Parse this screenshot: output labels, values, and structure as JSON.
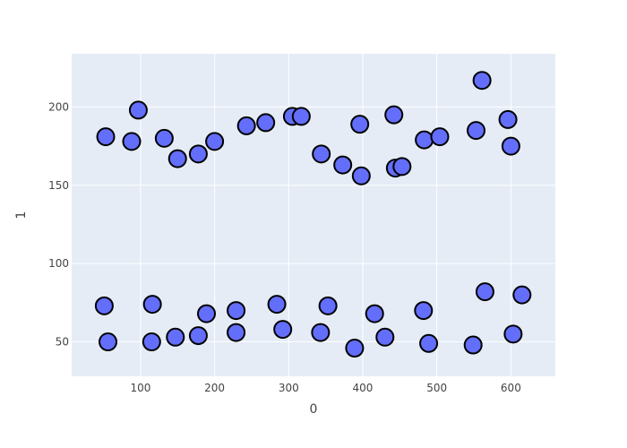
{
  "chart_data": {
    "type": "scatter",
    "xlabel": "0",
    "ylabel": "1",
    "xlim": [
      7,
      660
    ],
    "ylim": [
      28,
      234
    ],
    "xticks": [
      100,
      200,
      300,
      400,
      500,
      600
    ],
    "yticks": [
      50,
      100,
      150,
      200
    ],
    "grid": true,
    "colors": {
      "plot_bg": "#e5ecf6",
      "grid": "#ffffff",
      "marker_fill": "#636efa",
      "marker_edge": "#000000",
      "text": "#444444"
    },
    "series": [
      {
        "points": [
          {
            "x": 53,
            "y": 181
          },
          {
            "x": 88,
            "y": 178
          },
          {
            "x": 97,
            "y": 198
          },
          {
            "x": 132,
            "y": 180
          },
          {
            "x": 150,
            "y": 167
          },
          {
            "x": 178,
            "y": 170
          },
          {
            "x": 200,
            "y": 178
          },
          {
            "x": 243,
            "y": 188
          },
          {
            "x": 269,
            "y": 190
          },
          {
            "x": 305,
            "y": 194
          },
          {
            "x": 317,
            "y": 194
          },
          {
            "x": 344,
            "y": 170
          },
          {
            "x": 373,
            "y": 163
          },
          {
            "x": 396,
            "y": 189
          },
          {
            "x": 398,
            "y": 156
          },
          {
            "x": 442,
            "y": 195
          },
          {
            "x": 444,
            "y": 161
          },
          {
            "x": 453,
            "y": 162
          },
          {
            "x": 483,
            "y": 179
          },
          {
            "x": 504,
            "y": 181
          },
          {
            "x": 553,
            "y": 185
          },
          {
            "x": 561,
            "y": 217
          },
          {
            "x": 596,
            "y": 192
          },
          {
            "x": 600,
            "y": 175
          },
          {
            "x": 51,
            "y": 73
          },
          {
            "x": 56,
            "y": 50
          },
          {
            "x": 115,
            "y": 50
          },
          {
            "x": 116,
            "y": 74
          },
          {
            "x": 147,
            "y": 53
          },
          {
            "x": 178,
            "y": 54
          },
          {
            "x": 189,
            "y": 68
          },
          {
            "x": 229,
            "y": 56
          },
          {
            "x": 229,
            "y": 70
          },
          {
            "x": 284,
            "y": 74
          },
          {
            "x": 292,
            "y": 58
          },
          {
            "x": 343,
            "y": 56
          },
          {
            "x": 353,
            "y": 73
          },
          {
            "x": 389,
            "y": 46
          },
          {
            "x": 416,
            "y": 68
          },
          {
            "x": 430,
            "y": 53
          },
          {
            "x": 482,
            "y": 70
          },
          {
            "x": 489,
            "y": 49
          },
          {
            "x": 549,
            "y": 48
          },
          {
            "x": 565,
            "y": 82
          },
          {
            "x": 603,
            "y": 55
          },
          {
            "x": 615,
            "y": 80
          }
        ]
      }
    ]
  }
}
